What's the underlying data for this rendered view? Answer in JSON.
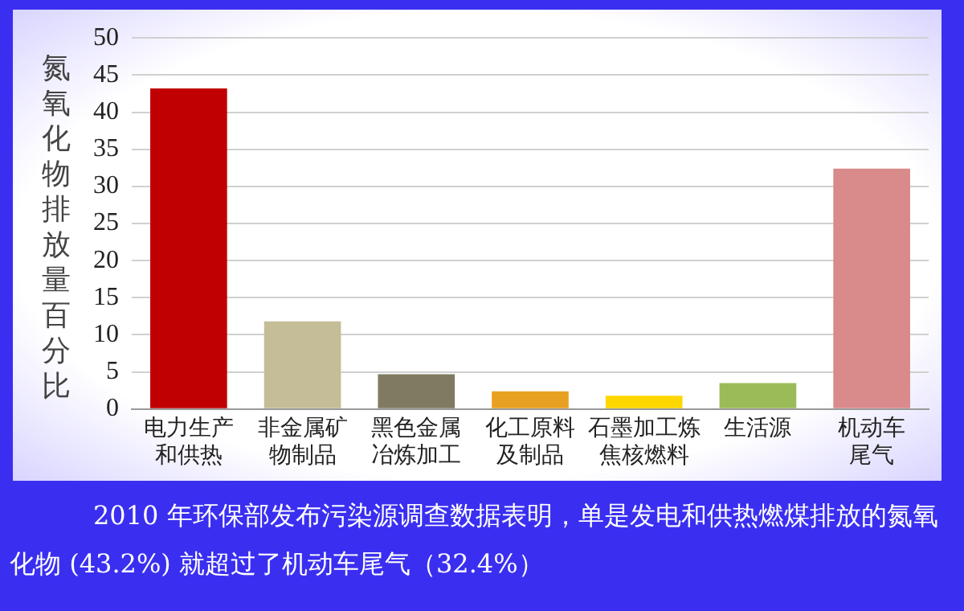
{
  "chart_data": {
    "type": "bar",
    "ylabel": "氮氧化物排放量百分比",
    "categories": [
      "电力生产和供热",
      "非金属矿物制品",
      "黑色金属冶炼加工",
      "化工原料及制品",
      "石墨加工炼焦核燃料",
      "生活源",
      "机动车尾气"
    ],
    "values": [
      43.2,
      11.8,
      4.7,
      2.4,
      1.8,
      3.5,
      32.4
    ],
    "colors": [
      "#c00000",
      "#c4bd97",
      "#7f7a60",
      "#e8a020",
      "#ffd700",
      "#9bbb59",
      "#d98a8a"
    ],
    "ylim": [
      0,
      50
    ],
    "yticks": [
      0,
      5,
      10,
      15,
      20,
      25,
      30,
      35,
      40,
      45,
      50
    ],
    "grid": "y",
    "legend": false,
    "annotations": [
      "2010 年环保部发布污染源调查数据表明，单是发电和供热燃煤排放的氮氧化物 (43.2%) 就超过了机动车尾气（32.4%）"
    ]
  }
}
